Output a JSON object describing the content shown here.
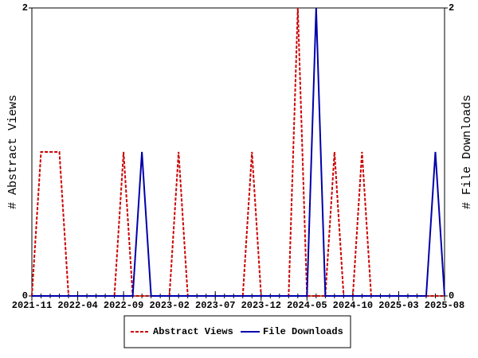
{
  "chart_data": {
    "type": "line",
    "x": [
      "2021-11",
      "2021-12",
      "2022-01",
      "2022-02",
      "2022-03",
      "2022-04",
      "2022-05",
      "2022-06",
      "2022-07",
      "2022-08",
      "2022-09",
      "2022-10",
      "2022-11",
      "2022-12",
      "2023-01",
      "2023-02",
      "2023-03",
      "2023-04",
      "2023-05",
      "2023-06",
      "2023-07",
      "2023-08",
      "2023-09",
      "2023-10",
      "2023-11",
      "2023-12",
      "2024-01",
      "2024-02",
      "2024-03",
      "2024-04",
      "2024-05",
      "2024-06",
      "2024-07",
      "2024-08",
      "2024-09",
      "2024-10",
      "2024-11",
      "2024-12",
      "2025-01",
      "2025-02",
      "2025-03",
      "2025-04",
      "2025-05",
      "2025-06",
      "2025-07",
      "2025-08"
    ],
    "xticks": [
      "2021-11",
      "2022-04",
      "2022-09",
      "2023-02",
      "2023-07",
      "2023-12",
      "2024-05",
      "2024-10",
      "2025-03",
      "2025-08"
    ],
    "ylabel": "# Abstract Views",
    "y2label": "# File Downloads",
    "ylim": [
      0,
      2
    ],
    "yticks": [
      0,
      2
    ],
    "y2lim": [
      0,
      2
    ],
    "y2ticks": [
      0,
      2
    ],
    "series": [
      {
        "name": "Abstract Views",
        "color": "#cc0000",
        "dashed": true,
        "values": [
          0,
          1,
          1,
          1,
          0,
          0,
          0,
          0,
          0,
          0,
          1,
          0,
          0,
          0,
          0,
          0,
          1,
          0,
          0,
          0,
          0,
          0,
          0,
          0,
          1,
          0,
          0,
          0,
          0,
          2,
          0,
          0,
          0,
          1,
          0,
          0,
          1,
          0,
          0,
          0,
          0,
          0,
          0,
          0,
          0,
          0
        ]
      },
      {
        "name": "File Downloads",
        "color": "#0000aa",
        "axis": "y2",
        "values": [
          0,
          0,
          0,
          0,
          0,
          0,
          0,
          0,
          0,
          0,
          0,
          0,
          1,
          0,
          0,
          0,
          0,
          0,
          0,
          0,
          0,
          0,
          0,
          0,
          0,
          0,
          0,
          0,
          0,
          0,
          0,
          2,
          0,
          0,
          0,
          0,
          0,
          0,
          0,
          0,
          0,
          0,
          0,
          0,
          1,
          0
        ]
      }
    ]
  }
}
